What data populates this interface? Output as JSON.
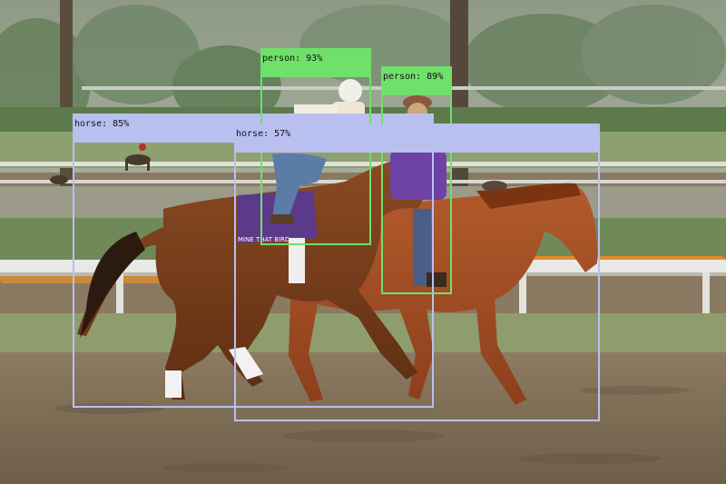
{
  "colors": {
    "person": "#6fe06a",
    "horse": "#b9c0f0"
  },
  "detections": [
    {
      "label": "horse: 85%",
      "class": "horse"
    },
    {
      "label": "person: 93%",
      "class": "person"
    },
    {
      "label": "person: 89%",
      "class": "person"
    },
    {
      "label": "horse: 57%",
      "class": "horse"
    }
  ],
  "saddle_cloth_text": "MINE THAT BIRD"
}
